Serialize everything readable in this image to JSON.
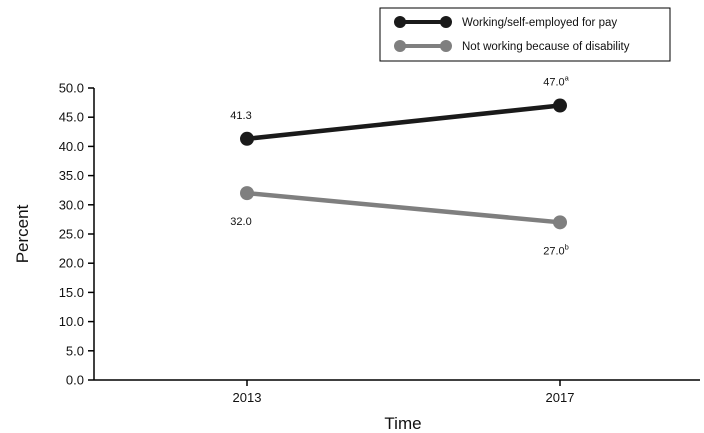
{
  "chart_data": {
    "type": "line",
    "title": "",
    "xlabel": "Time",
    "ylabel": "Percent",
    "x": [
      "2013",
      "2017"
    ],
    "ylim": [
      0,
      50
    ],
    "yticks": [
      "0.0",
      "5.0",
      "10.0",
      "15.0",
      "20.0",
      "25.0",
      "30.0",
      "35.0",
      "40.0",
      "45.0",
      "50.0"
    ],
    "grid": false,
    "legend_position": "top-right",
    "series": [
      {
        "name": "Working/self-employed for pay",
        "color": "#1a1a1a",
        "values": [
          41.3,
          47.0
        ],
        "labels": [
          {
            "text": "41.3",
            "sup": ""
          },
          {
            "text": "47.0",
            "sup": "a"
          }
        ]
      },
      {
        "name": "Not working because of disability",
        "color": "#7f7f7f",
        "values": [
          32.0,
          27.0
        ],
        "labels": [
          {
            "text": "32.0",
            "sup": ""
          },
          {
            "text": "27.0",
            "sup": "b"
          }
        ]
      }
    ]
  }
}
